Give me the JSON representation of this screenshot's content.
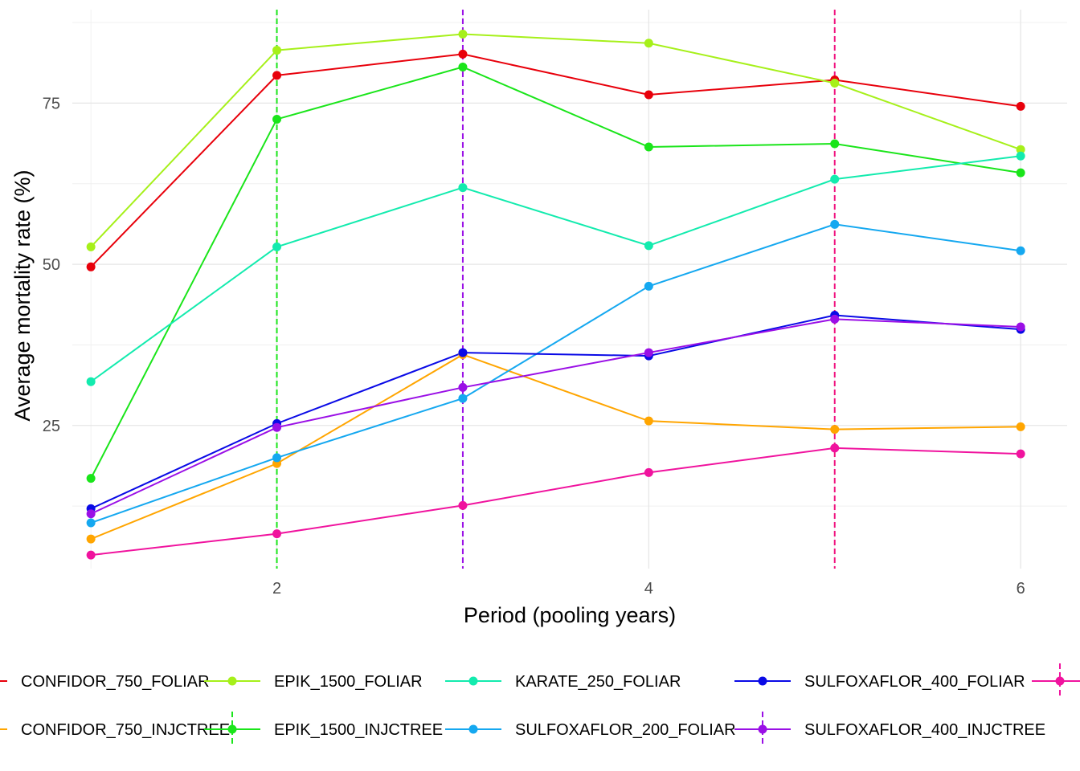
{
  "chart_data": {
    "type": "line",
    "xlabel": "Period (pooling years)",
    "ylabel": "Average mortality rate (%)",
    "xlim": [
      0.9,
      6.25
    ],
    "ylim": [
      2.8,
      89.5
    ],
    "x_ticks": [
      2,
      4,
      6
    ],
    "y_ticks": [
      25,
      50,
      75
    ],
    "grid": true,
    "legend_position": "bottom",
    "x": [
      1,
      2,
      3,
      4,
      5,
      6
    ],
    "vertical_lines": [
      {
        "x": 2,
        "color": "#1AE51A"
      },
      {
        "x": 3,
        "color": "#9A0FE6"
      },
      {
        "x": 5,
        "color": "#F0137F"
      }
    ],
    "series": [
      {
        "name": "CONFIDOR_750_FOLIAR",
        "color": "#E8000B",
        "values": [
          49.6,
          79.3,
          82.6,
          76.3,
          78.6,
          74.5
        ]
      },
      {
        "name": "CONFIDOR_750_INJCTREE",
        "color": "#FFA500",
        "values": [
          7.4,
          19.1,
          36.0,
          25.7,
          24.4,
          24.8
        ]
      },
      {
        "name": "EPIK_1500_FOLIAR",
        "color": "#A6F01A",
        "values": [
          52.7,
          83.2,
          85.7,
          84.3,
          78.1,
          67.8
        ]
      },
      {
        "name": "EPIK_1500_INJCTREE",
        "color": "#1AE51A",
        "values": [
          16.8,
          72.5,
          80.6,
          68.2,
          68.7,
          64.2
        ]
      },
      {
        "name": "KARATE_250_FOLIAR",
        "color": "#13EBAE",
        "values": [
          31.8,
          52.7,
          61.9,
          52.9,
          63.2,
          66.8
        ]
      },
      {
        "name": "SULFOXAFLOR_200_FOLIAR",
        "color": "#15A8F0",
        "values": [
          9.9,
          20.0,
          29.2,
          46.6,
          56.2,
          52.1
        ]
      },
      {
        "name": "SULFOXAFLOR_400_FOLIAR",
        "color": "#0A0AE6",
        "values": [
          12.1,
          25.3,
          36.3,
          35.8,
          42.1,
          39.9
        ]
      },
      {
        "name": "SULFOXAFLOR_400_INJCTREE",
        "color": "#9A0FE6",
        "values": [
          11.3,
          24.7,
          30.9,
          36.3,
          41.5,
          40.3
        ]
      },
      {
        "name": "",
        "color": "#F0139E",
        "values": [
          4.9,
          8.2,
          12.6,
          17.7,
          21.5,
          20.6
        ]
      }
    ]
  },
  "legend": {
    "items": [
      {
        "label": "CONFIDOR_750_FOLIAR",
        "color": "#E8000B",
        "dashed": false
      },
      {
        "label": "CONFIDOR_750_INJCTREE",
        "color": "#FFA500",
        "dashed": false
      },
      {
        "label": "EPIK_1500_FOLIAR",
        "color": "#A6F01A",
        "dashed": false
      },
      {
        "label": "EPIK_1500_INJCTREE",
        "color": "#1AE51A",
        "dashed": true
      },
      {
        "label": "KARATE_250_FOLIAR",
        "color": "#13EBAE",
        "dashed": false
      },
      {
        "label": "SULFOXAFLOR_200_FOLIAR",
        "color": "#15A8F0",
        "dashed": false
      },
      {
        "label": "SULFOXAFLOR_400_FOLIAR",
        "color": "#0A0AE6",
        "dashed": false
      },
      {
        "label": "SULFOXAFLOR_400_INJCTREE",
        "color": "#9A0FE6",
        "dashed": true
      },
      {
        "label": "",
        "color": "#F0139E",
        "dashed": true
      }
    ]
  }
}
